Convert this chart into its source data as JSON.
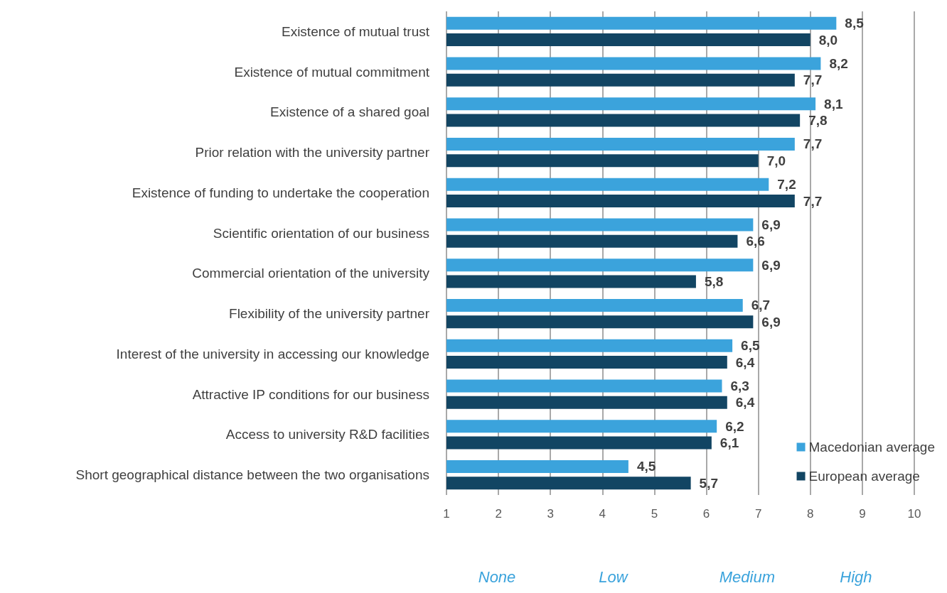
{
  "chart_data": {
    "type": "bar",
    "orientation": "horizontal",
    "categories": [
      "Existence of mutual trust",
      "Existence of mutual commitment",
      "Existence of a shared goal",
      "Prior relation with the university partner",
      "Existence of funding to undertake the cooperation",
      "Scientific orientation of our business",
      "Commercial orientation of the university",
      "Flexibility of the university partner",
      "Interest of the university in accessing our knowledge",
      "Attractive IP conditions for our business",
      "Access to university R&D facilities",
      "Short geographical distance between the two organisations"
    ],
    "series": [
      {
        "name": "Macedonian average",
        "color": "#3ba3dc",
        "values": [
          8.5,
          8.2,
          8.1,
          7.7,
          7.2,
          6.9,
          6.9,
          6.7,
          6.5,
          6.3,
          6.2,
          4.5
        ],
        "value_labels": [
          "8,5",
          "8,2",
          "8,1",
          "7,7",
          "7,2",
          "6,9",
          "6,9",
          "6,7",
          "6,5",
          "6,3",
          "6,2",
          "4,5"
        ]
      },
      {
        "name": "European average",
        "color": "#124563",
        "values": [
          8.0,
          7.7,
          7.8,
          7.0,
          7.7,
          6.6,
          5.8,
          6.9,
          6.4,
          6.4,
          6.1,
          5.7
        ],
        "value_labels": [
          "8,0",
          "7,7",
          "7,8",
          "7,0",
          "7,7",
          "6,6",
          "5,8",
          "6,9",
          "6,4",
          "6,4",
          "6,1",
          "5,7"
        ]
      }
    ],
    "xlim": [
      1,
      10
    ],
    "xticks": [
      1,
      2,
      3,
      4,
      5,
      6,
      7,
      8,
      9,
      10
    ],
    "grid": "x",
    "legend": "bottom right",
    "annotations": [
      "None",
      "Low",
      "Medium",
      "High"
    ]
  }
}
